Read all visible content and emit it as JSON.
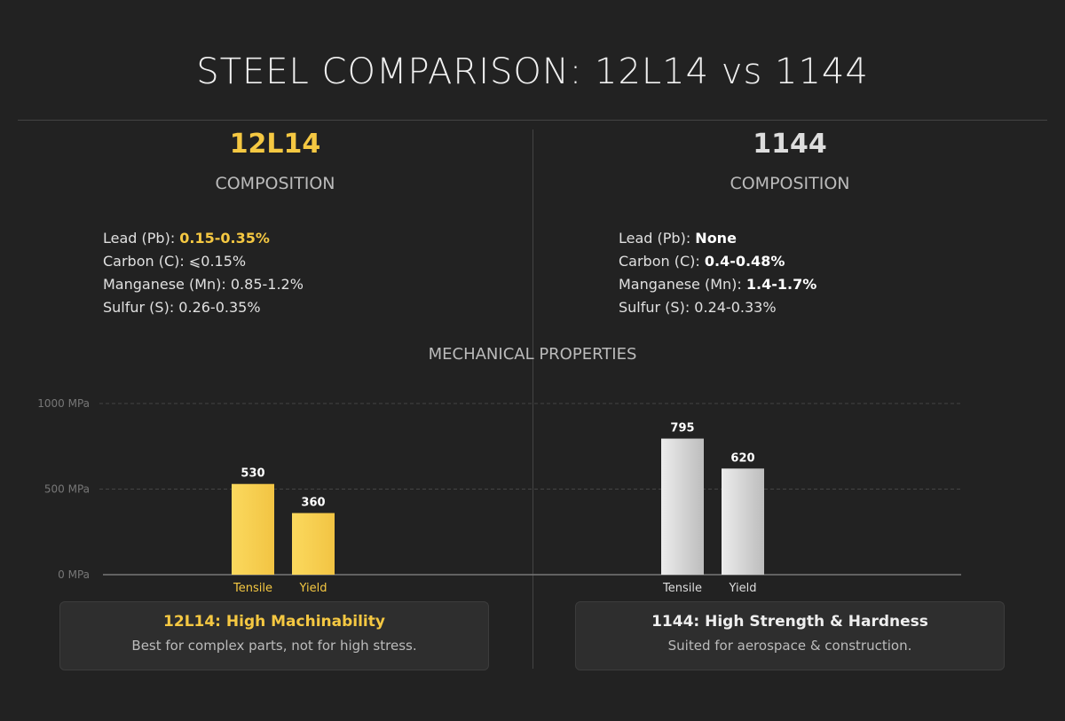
{
  "title": "STEEL COMPARISON: 12L14 vs 1144",
  "colors": {
    "accent": "#f5c842",
    "steel": "#d8d8d8",
    "background": "#222222"
  },
  "left": {
    "name": "12L14",
    "composition_label": "COMPOSITION",
    "items": [
      {
        "label": "Lead (Pb): ",
        "value": "0.15-0.35%",
        "bold": true
      },
      {
        "label": "Carbon (C): ",
        "value": "⩽0.15%",
        "bold": false
      },
      {
        "label": "Manganese (Mn): ",
        "value": "0.85-1.2%",
        "bold": false
      },
      {
        "label": "Sulfur (S): ",
        "value": "0.26-0.35%",
        "bold": false
      }
    ],
    "card": {
      "title": "12L14: High Machinability",
      "subtitle": "Best for complex parts, not for high stress."
    }
  },
  "right": {
    "name": "1144",
    "composition_label": "COMPOSITION",
    "items": [
      {
        "label": "Lead (Pb): ",
        "value": "None",
        "bold": true
      },
      {
        "label": "Carbon (C): ",
        "value": "0.4-0.48%",
        "bold": true
      },
      {
        "label": "Manganese (Mn): ",
        "value": "1.4-1.7%",
        "bold": true
      },
      {
        "label": "Sulfur (S): ",
        "value": "0.24-0.33%",
        "bold": false
      }
    ],
    "card": {
      "title": "1144: High Strength & Hardness",
      "subtitle": "Suited for aerospace & construction."
    }
  },
  "mechanical_label": "MECHANICAL PROPERTIES",
  "chart_data": {
    "type": "bar",
    "title": "MECHANICAL PROPERTIES",
    "ylim": [
      0,
      1000
    ],
    "yticks": [
      "0 MPa",
      "500 MPa",
      "1000 MPa"
    ],
    "grid": true,
    "groups": [
      {
        "name": "12L14",
        "categories": [
          "Tensile",
          "Yield"
        ],
        "values": [
          530,
          360
        ],
        "color": "#f5c842"
      },
      {
        "name": "1144",
        "categories": [
          "Tensile",
          "Yield"
        ],
        "values": [
          795,
          620
        ],
        "color": "#d8d8d8"
      }
    ]
  }
}
